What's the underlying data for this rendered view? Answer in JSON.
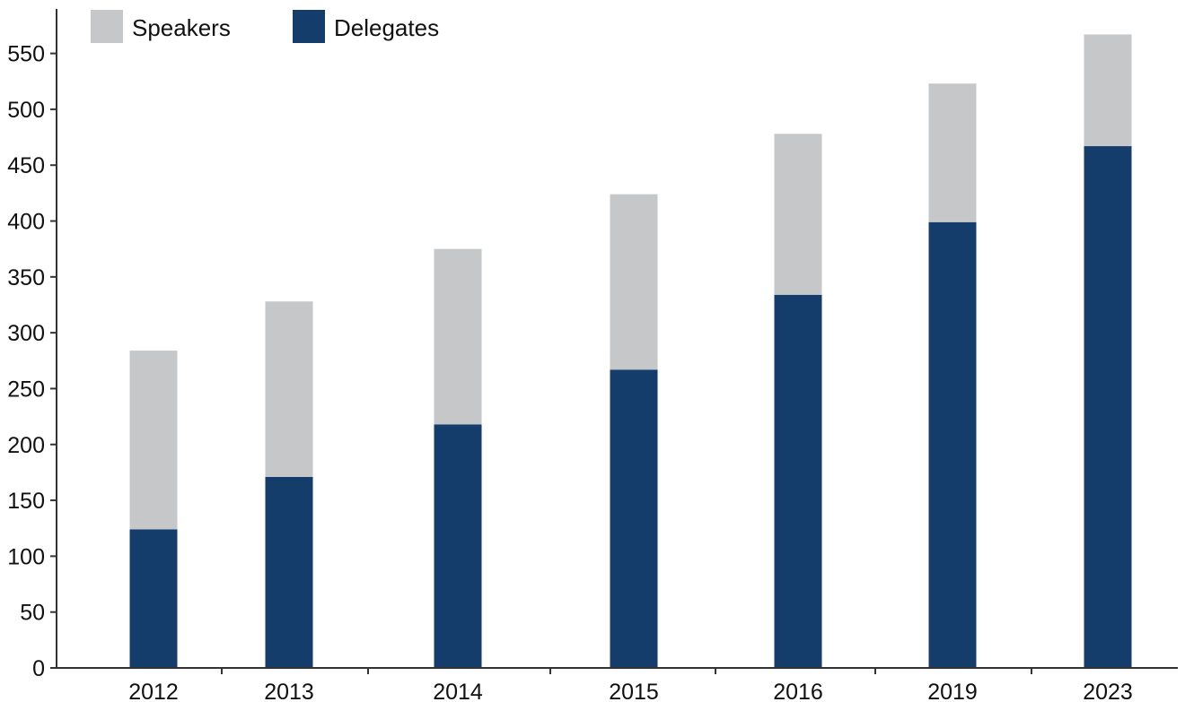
{
  "chart_data": {
    "type": "bar",
    "stacked": true,
    "categories": [
      "2012",
      "2013",
      "2014",
      "2015",
      "2016",
      "2019",
      "2023"
    ],
    "series": [
      {
        "name": "Delegates",
        "color": "#143d6b",
        "values": [
          124,
          171,
          218,
          267,
          334,
          399,
          467
        ]
      },
      {
        "name": "Speakers",
        "color": "#c6c7c9",
        "values": [
          160,
          157,
          157,
          157,
          144,
          124,
          100
        ]
      }
    ],
    "totals": [
      284,
      328,
      375,
      424,
      478,
      523,
      567
    ],
    "yticks": [
      "0",
      "50",
      "100",
      "150",
      "200",
      "250",
      "300",
      "350",
      "400",
      "450",
      "500",
      "550"
    ],
    "ylim": [
      0,
      565
    ],
    "grid": false,
    "legend": {
      "position": "top-left",
      "order": [
        "Speakers",
        "Delegates"
      ]
    },
    "title": "",
    "xlabel": "",
    "ylabel": ""
  }
}
